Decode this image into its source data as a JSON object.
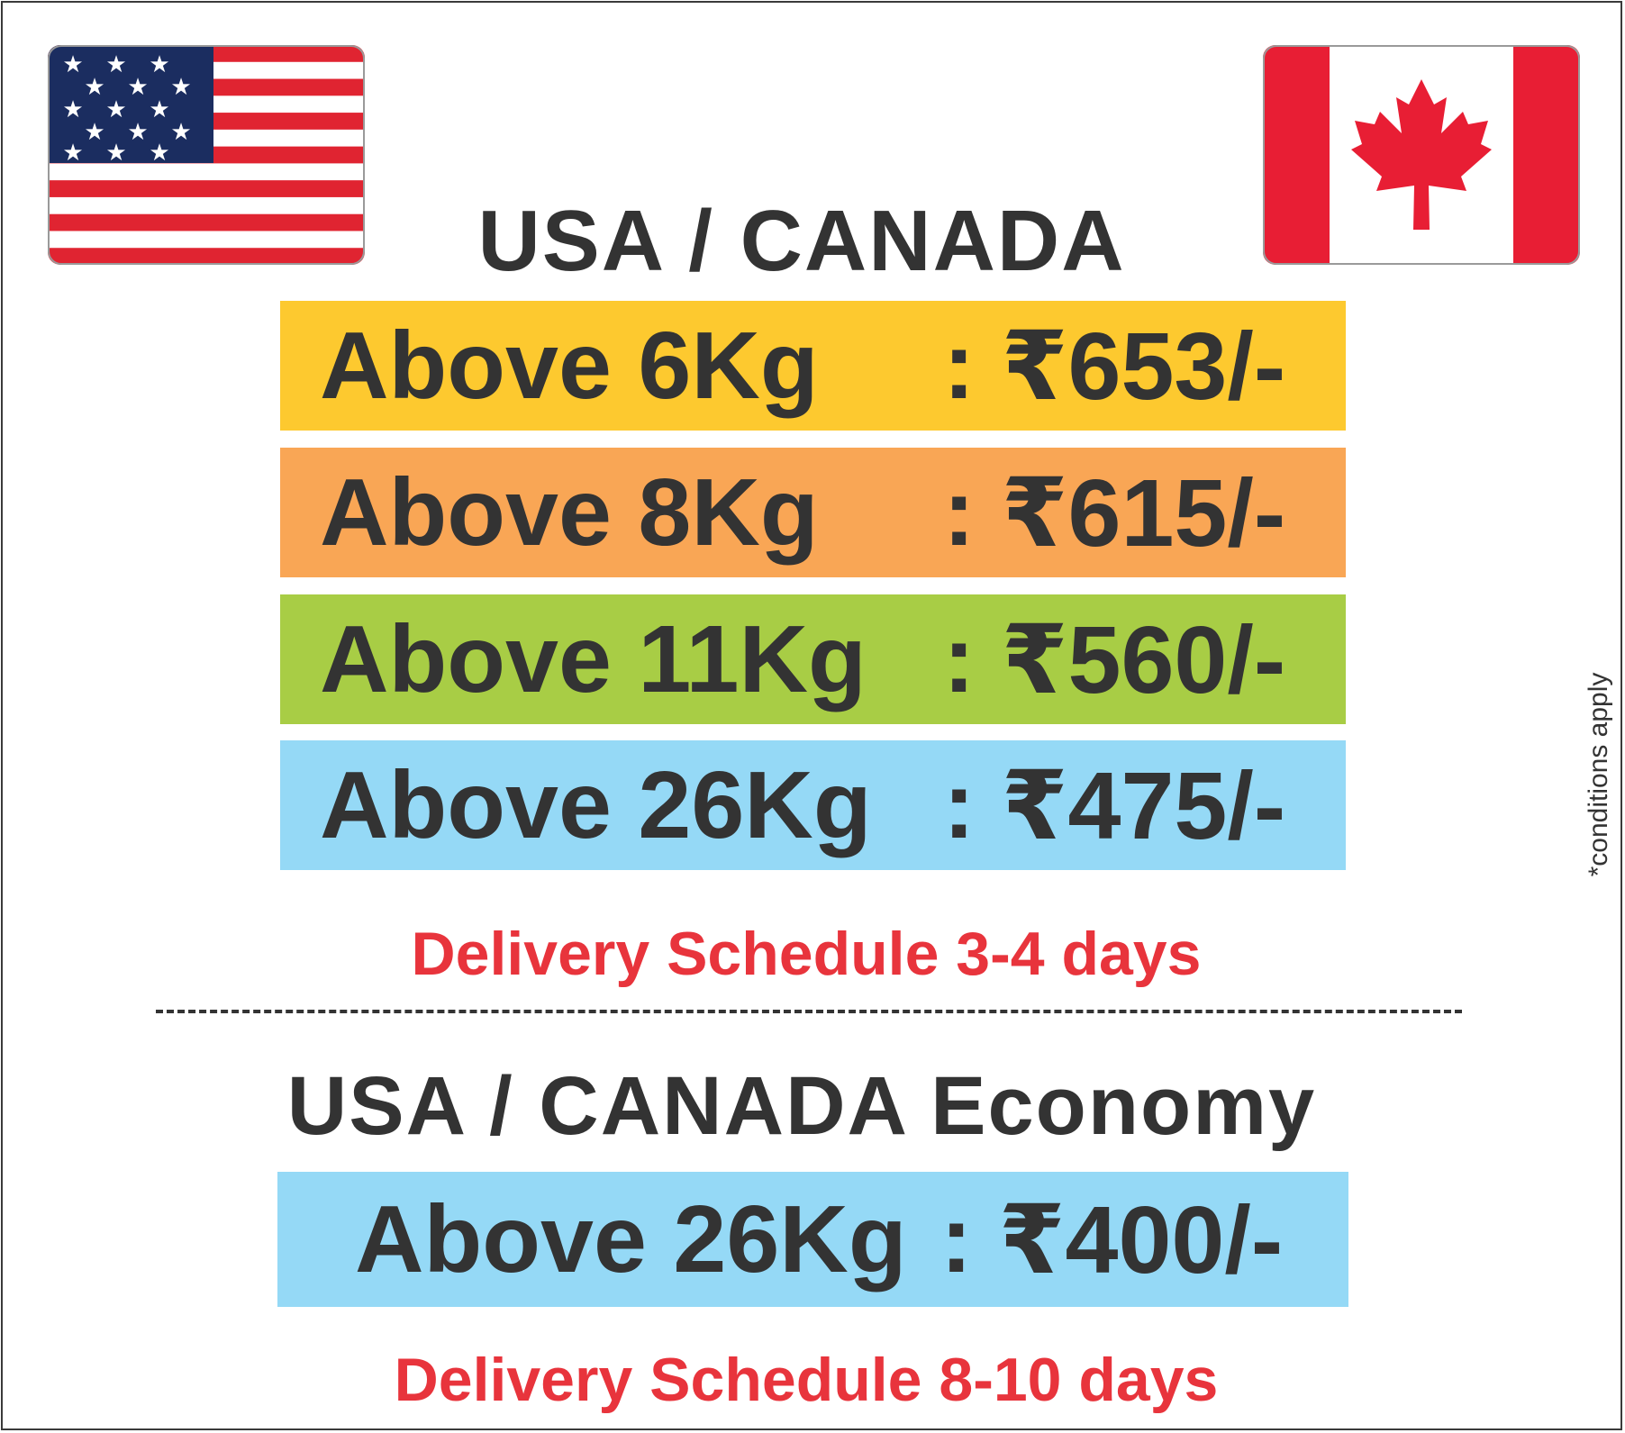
{
  "header": {
    "title": "USA / CANADA"
  },
  "flags": {
    "left": "usa-flag-icon",
    "right": "canada-flag-icon"
  },
  "express_rates": [
    {
      "label": "Above 6Kg",
      "separator": ":",
      "price": "₹653/-",
      "color": "#fdc92f"
    },
    {
      "label": "Above 8Kg",
      "separator": ":",
      "price": "₹615/-",
      "color": "#f9a655"
    },
    {
      "label": "Above 11Kg",
      "separator": ":",
      "price": "₹560/-",
      "color": "#a8cd45"
    },
    {
      "label": "Above 26Kg",
      "separator": ":",
      "price": "₹475/-",
      "color": "#95d9f6"
    }
  ],
  "express_delivery": "Delivery Schedule 3-4 days",
  "economy": {
    "title": "USA / CANADA Economy",
    "rate": {
      "label": "Above 26Kg",
      "separator": ":",
      "price": "₹400/-",
      "color": "#95d9f6"
    },
    "delivery": "Delivery Schedule 8-10 days"
  },
  "footnote": "*conditions apply",
  "colors": {
    "text": "#333333",
    "accent_red": "#e8343c"
  }
}
